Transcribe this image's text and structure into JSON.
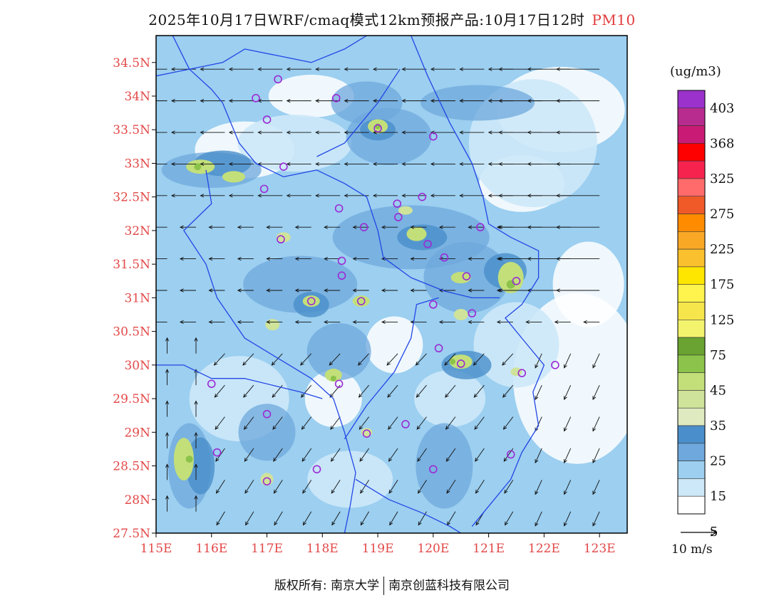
{
  "title": {
    "text": "2025年10月17日WRF/cmaq模式12km预报产品:10月17日12时",
    "species": "PM10"
  },
  "map": {
    "lat_labels": [
      "34.5N",
      "34N",
      "33.5N",
      "33N",
      "32.5N",
      "32N",
      "31.5N",
      "31N",
      "30.5N",
      "30N",
      "29.5N",
      "29N",
      "28.5N",
      "28N",
      "27.5N"
    ],
    "lon_labels": [
      "115E",
      "116E",
      "117E",
      "118E",
      "119E",
      "120E",
      "121E",
      "122E",
      "123E"
    ],
    "lat_range": [
      27.5,
      34.9
    ],
    "lon_range": [
      115.0,
      123.5
    ],
    "colors": {
      "boundary": "#2346e6",
      "station": "#9b2bd4",
      "axis_label": "#e34848",
      "frame": "#000000"
    }
  },
  "legend": {
    "unit": "(ug/m3)",
    "levels": [
      "403",
      "368",
      "325",
      "275",
      "225",
      "175",
      "125",
      "75",
      "45",
      "35",
      "25",
      "15",
      "5"
    ],
    "colors": [
      "#9b32cc",
      "#b82b8f",
      "#c91b75",
      "#ff0000",
      "#f7234f",
      "#ff6a6a",
      "#f05a28",
      "#ff8c00",
      "#f9a826",
      "#fbc02d",
      "#ffe600",
      "#fff34d",
      "#f7e64b",
      "#f3f36e",
      "#6aa331",
      "#8cc34a",
      "#c3df7a",
      "#cfe39a",
      "#dfeac0",
      "#4a8fcb",
      "#6fa8dc",
      "#9ccff0",
      "#cde8f8",
      "#ffffff"
    ]
  },
  "wind_reference": {
    "label": "10 m/s"
  },
  "footer": {
    "left": "版权所有: 南京大学",
    "right": "南京创蓝科技有限公司"
  }
}
